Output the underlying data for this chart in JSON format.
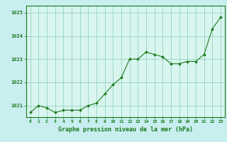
{
  "x": [
    0,
    1,
    2,
    3,
    4,
    5,
    6,
    7,
    8,
    9,
    10,
    11,
    12,
    13,
    14,
    15,
    16,
    17,
    18,
    19,
    20,
    21,
    22,
    23
  ],
  "y": [
    1020.7,
    1021.0,
    1020.9,
    1020.7,
    1020.8,
    1020.8,
    1020.8,
    1021.0,
    1021.1,
    1021.5,
    1021.9,
    1022.2,
    1023.0,
    1023.0,
    1023.3,
    1023.2,
    1023.1,
    1022.8,
    1022.8,
    1022.9,
    1022.9,
    1023.2,
    1024.3,
    1024.8
  ],
  "line_color": "#1a7a1a",
  "marker_color": "#1a7a1a",
  "bg_color": "#c8eef0",
  "grid_color": "#88ccbb",
  "plot_bg": "#d8f5ee",
  "xlabel": "Graphe pression niveau de la mer (hPa)",
  "xlabel_color": "#1a7a1a",
  "tick_color": "#1a7a1a",
  "axis_color": "#1a7a1a",
  "ylim": [
    1020.5,
    1025.3
  ],
  "yticks": [
    1021,
    1022,
    1023,
    1024,
    1025
  ],
  "xlim": [
    -0.5,
    23.5
  ],
  "xticks": [
    0,
    1,
    2,
    3,
    4,
    5,
    6,
    7,
    8,
    9,
    10,
    11,
    12,
    13,
    14,
    15,
    16,
    17,
    18,
    19,
    20,
    21,
    22,
    23
  ]
}
